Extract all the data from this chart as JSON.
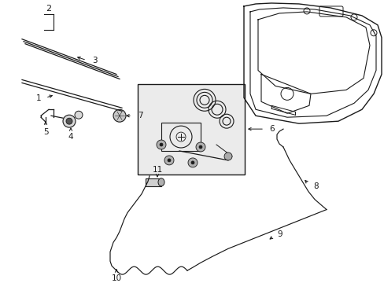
{
  "bg_color": "#ffffff",
  "line_color": "#1a1a1a",
  "figsize": [
    4.89,
    3.6
  ],
  "dpi": 100,
  "lw": 0.85
}
